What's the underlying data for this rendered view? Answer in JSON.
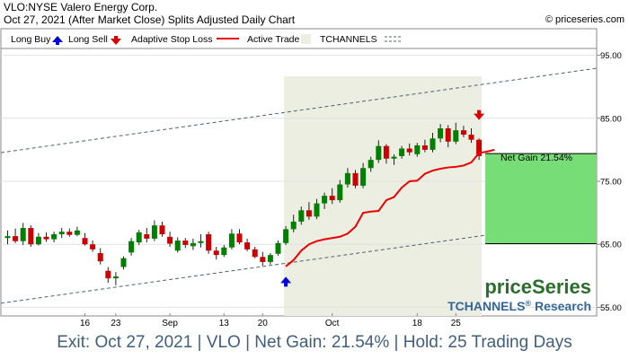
{
  "header": {
    "line1": "VLO:NYSE Valero Energy Corp.",
    "line2": "Oct 27, 2021 (After Market Close)  Splits Adjusted Daily Chart",
    "copyright": "© priceseries.com"
  },
  "legend": {
    "long_buy": "Long Buy",
    "long_sell": "Long Sell",
    "adaptive_stop": "Adaptive Stop Loss",
    "active_trade": "Active Trade",
    "tchannels": "TCHANNELS"
  },
  "net_gain_label": "Net Gain 21.54%",
  "brand": {
    "name": "priceSeries",
    "research_prefix": "TCHANNELS",
    "research_reg": "®",
    "research_suffix": " Research"
  },
  "footer": "Exit: Oct 27, 2021 | VLO | Net Gain: 21.54% | Hold: 25 Trading Days",
  "colors": {
    "up": "#008000",
    "down": "#cc0000",
    "stop": "#ee0000",
    "active_trade_bg": "#ebeee0",
    "gain_box": "#77dd77",
    "buy_arrow": "#0000dd",
    "sell_arrow": "#dd0000",
    "channel": "#506070",
    "brand_green": "#2b6e2b",
    "brand_blue": "#336699"
  },
  "chart_data": {
    "type": "candlestick",
    "ylim": [
      52,
      99
    ],
    "yticks": [
      55,
      65,
      75,
      85,
      95
    ],
    "ytick_labels": [
      "55.00",
      "65.00",
      "75.00",
      "85.00",
      "95.00"
    ],
    "xtick_labels": [
      {
        "i": 10,
        "label": "16"
      },
      {
        "i": 14,
        "label": "23"
      },
      {
        "i": 21,
        "label": "Sep"
      },
      {
        "i": 28,
        "label": "13"
      },
      {
        "i": 33,
        "label": "20"
      },
      {
        "i": 42,
        "label": "Oct"
      },
      {
        "i": 53,
        "label": "18"
      },
      {
        "i": 58,
        "label": "25"
      }
    ],
    "candles": [
      {
        "o": 66.0,
        "h": 67.2,
        "l": 65.0,
        "c": 66.3
      },
      {
        "o": 66.3,
        "h": 67.5,
        "l": 65.2,
        "c": 65.5
      },
      {
        "o": 65.5,
        "h": 68.4,
        "l": 64.9,
        "c": 67.6
      },
      {
        "o": 67.6,
        "h": 68.0,
        "l": 64.6,
        "c": 65.0
      },
      {
        "o": 65.0,
        "h": 66.8,
        "l": 64.8,
        "c": 66.2
      },
      {
        "o": 66.2,
        "h": 66.9,
        "l": 65.4,
        "c": 65.8
      },
      {
        "o": 65.8,
        "h": 67.0,
        "l": 65.3,
        "c": 66.6
      },
      {
        "o": 66.6,
        "h": 67.6,
        "l": 66.0,
        "c": 67.0
      },
      {
        "o": 67.0,
        "h": 67.5,
        "l": 66.2,
        "c": 66.5
      },
      {
        "o": 66.5,
        "h": 67.8,
        "l": 66.3,
        "c": 67.2
      },
      {
        "o": 66.0,
        "h": 66.8,
        "l": 64.8,
        "c": 65.0
      },
      {
        "o": 65.0,
        "h": 65.6,
        "l": 63.8,
        "c": 64.2
      },
      {
        "o": 63.6,
        "h": 64.4,
        "l": 61.8,
        "c": 62.3
      },
      {
        "o": 60.8,
        "h": 61.4,
        "l": 58.9,
        "c": 59.6
      },
      {
        "o": 59.6,
        "h": 60.6,
        "l": 58.5,
        "c": 59.9
      },
      {
        "o": 61.4,
        "h": 63.1,
        "l": 61.0,
        "c": 62.8
      },
      {
        "o": 63.7,
        "h": 66.0,
        "l": 63.2,
        "c": 65.5
      },
      {
        "o": 65.3,
        "h": 67.3,
        "l": 64.9,
        "c": 66.9
      },
      {
        "o": 66.6,
        "h": 67.6,
        "l": 65.3,
        "c": 65.9
      },
      {
        "o": 65.9,
        "h": 68.8,
        "l": 65.5,
        "c": 68.0
      },
      {
        "o": 68.0,
        "h": 68.6,
        "l": 66.2,
        "c": 66.6
      },
      {
        "o": 66.2,
        "h": 67.0,
        "l": 64.6,
        "c": 65.1
      },
      {
        "o": 64.0,
        "h": 66.1,
        "l": 63.7,
        "c": 65.6
      },
      {
        "o": 65.6,
        "h": 66.0,
        "l": 64.4,
        "c": 64.9
      },
      {
        "o": 64.7,
        "h": 65.9,
        "l": 64.1,
        "c": 65.2
      },
      {
        "o": 65.2,
        "h": 66.6,
        "l": 64.5,
        "c": 65.5
      },
      {
        "o": 66.6,
        "h": 67.0,
        "l": 63.5,
        "c": 64.0
      },
      {
        "o": 64.0,
        "h": 64.6,
        "l": 62.6,
        "c": 63.3
      },
      {
        "o": 63.3,
        "h": 64.9,
        "l": 63.0,
        "c": 64.5
      },
      {
        "o": 64.5,
        "h": 67.4,
        "l": 64.2,
        "c": 66.7
      },
      {
        "o": 66.7,
        "h": 67.4,
        "l": 65.0,
        "c": 65.3
      },
      {
        "o": 65.3,
        "h": 65.9,
        "l": 63.9,
        "c": 64.2
      },
      {
        "o": 64.2,
        "h": 64.6,
        "l": 62.8,
        "c": 63.0
      },
      {
        "o": 63.0,
        "h": 63.8,
        "l": 61.6,
        "c": 62.2
      },
      {
        "o": 62.2,
        "h": 63.6,
        "l": 61.8,
        "c": 63.3
      },
      {
        "o": 63.5,
        "h": 65.6,
        "l": 63.2,
        "c": 65.2
      },
      {
        "o": 65.2,
        "h": 67.9,
        "l": 64.9,
        "c": 67.4
      },
      {
        "o": 67.4,
        "h": 69.7,
        "l": 66.9,
        "c": 68.6
      },
      {
        "o": 68.6,
        "h": 71.0,
        "l": 68.1,
        "c": 70.4
      },
      {
        "o": 70.4,
        "h": 71.7,
        "l": 68.9,
        "c": 69.4
      },
      {
        "o": 69.4,
        "h": 72.2,
        "l": 69.0,
        "c": 71.5
      },
      {
        "o": 71.5,
        "h": 73.2,
        "l": 70.6,
        "c": 72.7
      },
      {
        "o": 72.7,
        "h": 73.9,
        "l": 71.4,
        "c": 72.0
      },
      {
        "o": 72.0,
        "h": 75.2,
        "l": 71.6,
        "c": 74.5
      },
      {
        "o": 74.5,
        "h": 77.1,
        "l": 74.0,
        "c": 76.3
      },
      {
        "o": 76.3,
        "h": 76.8,
        "l": 73.9,
        "c": 74.3
      },
      {
        "o": 74.3,
        "h": 77.9,
        "l": 73.9,
        "c": 77.1
      },
      {
        "o": 77.1,
        "h": 78.9,
        "l": 76.5,
        "c": 78.4
      },
      {
        "o": 78.4,
        "h": 81.5,
        "l": 77.9,
        "c": 80.6
      },
      {
        "o": 80.6,
        "h": 80.9,
        "l": 77.8,
        "c": 78.6
      },
      {
        "o": 78.6,
        "h": 79.3,
        "l": 77.6,
        "c": 78.9
      },
      {
        "o": 79.0,
        "h": 80.6,
        "l": 78.6,
        "c": 80.2
      },
      {
        "o": 80.2,
        "h": 81.0,
        "l": 79.1,
        "c": 79.6
      },
      {
        "o": 79.3,
        "h": 81.1,
        "l": 78.9,
        "c": 80.7
      },
      {
        "o": 80.7,
        "h": 81.6,
        "l": 79.6,
        "c": 80.0
      },
      {
        "o": 80.0,
        "h": 82.7,
        "l": 79.6,
        "c": 81.8
      },
      {
        "o": 81.8,
        "h": 84.1,
        "l": 81.2,
        "c": 83.4
      },
      {
        "o": 83.4,
        "h": 83.9,
        "l": 80.4,
        "c": 81.3
      },
      {
        "o": 81.3,
        "h": 84.3,
        "l": 80.9,
        "c": 83.1
      },
      {
        "o": 83.1,
        "h": 83.8,
        "l": 82.0,
        "c": 82.4
      },
      {
        "o": 82.4,
        "h": 83.4,
        "l": 81.1,
        "c": 81.6
      },
      {
        "o": 81.6,
        "h": 81.8,
        "l": 78.4,
        "c": 79.0
      }
    ],
    "stop_line_start": 36,
    "stop_line": [
      61.5,
      62.5,
      64.0,
      65.0,
      65.5,
      65.8,
      66.0,
      66.2,
      66.7,
      67.8,
      70.0,
      70.2,
      70.3,
      72.0,
      72.5,
      74.0,
      75.0,
      75.1,
      76.2,
      76.7,
      77.0,
      77.2,
      77.3,
      77.5,
      78.0,
      79.5,
      79.7,
      80.0
    ],
    "channel_upper": [
      {
        "i": 0,
        "v": 79.7
      },
      {
        "i": 61,
        "v": 90.3
      }
    ],
    "channel_lower": [
      {
        "i": 0,
        "v": 55.8
      },
      {
        "i": 61,
        "v": 66.3
      }
    ],
    "active_trade_range": [
      36,
      61
    ],
    "buy": {
      "i": 36,
      "v": 59.0
    },
    "sell": {
      "i": 61,
      "v": 85.6
    },
    "gain_box": {
      "low": 65.1,
      "high": 79.4
    }
  }
}
